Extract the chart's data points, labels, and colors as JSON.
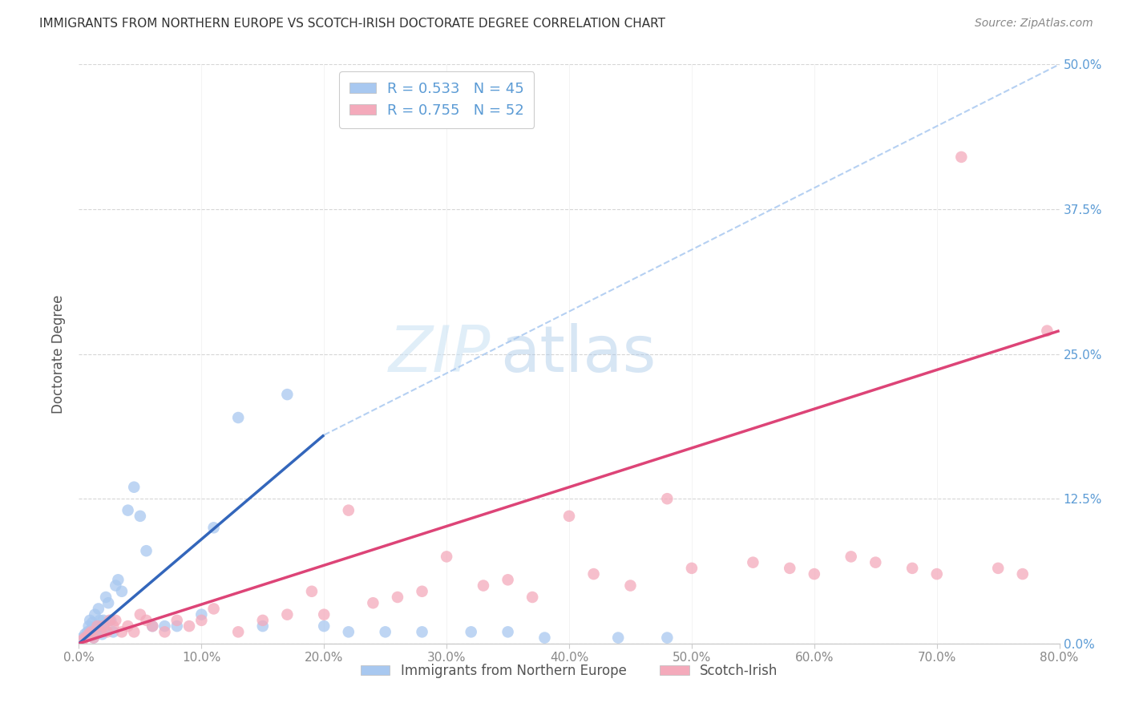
{
  "title": "IMMIGRANTS FROM NORTHERN EUROPE VS SCOTCH-IRISH DOCTORATE DEGREE CORRELATION CHART",
  "source": "Source: ZipAtlas.com",
  "xlabel_vals": [
    0,
    10,
    20,
    30,
    40,
    50,
    60,
    70,
    80
  ],
  "ylabel_vals": [
    0,
    12.5,
    25.0,
    37.5,
    50.0
  ],
  "ylabel_label": "Doctorate Degree",
  "xlim": [
    0,
    80
  ],
  "ylim": [
    0,
    50
  ],
  "legend_label_blue": "Immigrants from Northern Europe",
  "legend_label_pink": "Scotch-Irish",
  "blue_color": "#A8C8F0",
  "pink_color": "#F4AABB",
  "blue_line_color": "#3366BB",
  "pink_line_color": "#DD4477",
  "blue_r": "0.533",
  "blue_n": "45",
  "pink_r": "0.755",
  "pink_n": "52",
  "blue_scatter_x": [
    0.3,
    0.5,
    0.7,
    0.8,
    0.9,
    1.0,
    1.1,
    1.2,
    1.3,
    1.4,
    1.5,
    1.6,
    1.7,
    1.8,
    1.9,
    2.0,
    2.1,
    2.2,
    2.4,
    2.6,
    2.8,
    3.0,
    3.2,
    3.5,
    4.0,
    4.5,
    5.0,
    5.5,
    6.0,
    7.0,
    8.0,
    10.0,
    11.0,
    13.0,
    15.0,
    17.0,
    20.0,
    22.0,
    25.0,
    28.0,
    32.0,
    35.0,
    38.0,
    44.0,
    48.0
  ],
  "blue_scatter_y": [
    0.5,
    0.8,
    1.0,
    1.5,
    2.0,
    1.2,
    1.8,
    0.5,
    2.5,
    1.0,
    1.5,
    3.0,
    2.0,
    1.5,
    0.8,
    2.0,
    1.2,
    4.0,
    3.5,
    2.0,
    1.0,
    5.0,
    5.5,
    4.5,
    11.5,
    13.5,
    11.0,
    8.0,
    1.5,
    1.5,
    1.5,
    2.5,
    10.0,
    19.5,
    1.5,
    21.5,
    1.5,
    1.0,
    1.0,
    1.0,
    1.0,
    1.0,
    0.5,
    0.5,
    0.5
  ],
  "pink_scatter_x": [
    0.3,
    0.5,
    0.8,
    1.0,
    1.2,
    1.5,
    1.8,
    2.0,
    2.3,
    2.5,
    2.8,
    3.0,
    3.5,
    4.0,
    4.5,
    5.0,
    5.5,
    6.0,
    7.0,
    8.0,
    9.0,
    10.0,
    11.0,
    13.0,
    15.0,
    17.0,
    19.0,
    20.0,
    22.0,
    24.0,
    26.0,
    28.0,
    30.0,
    33.0,
    35.0,
    37.0,
    40.0,
    42.0,
    45.0,
    48.0,
    50.0,
    55.0,
    58.0,
    60.0,
    63.0,
    65.0,
    68.0,
    70.0,
    72.0,
    75.0,
    77.0,
    79.0
  ],
  "pink_scatter_y": [
    0.3,
    0.5,
    0.8,
    1.0,
    0.5,
    1.5,
    1.0,
    1.5,
    1.0,
    2.0,
    1.5,
    2.0,
    1.0,
    1.5,
    1.0,
    2.5,
    2.0,
    1.5,
    1.0,
    2.0,
    1.5,
    2.0,
    3.0,
    1.0,
    2.0,
    2.5,
    4.5,
    2.5,
    11.5,
    3.5,
    4.0,
    4.5,
    7.5,
    5.0,
    5.5,
    4.0,
    11.0,
    6.0,
    5.0,
    12.5,
    6.5,
    7.0,
    6.5,
    6.0,
    7.5,
    7.0,
    6.5,
    6.0,
    42.0,
    6.5,
    6.0,
    27.0
  ],
  "background_color": "#FFFFFF",
  "grid_color": "#CCCCCC",
  "blue_line_x0": 0.0,
  "blue_line_y0": 0.0,
  "blue_line_x1": 20.0,
  "blue_line_y1": 18.0,
  "blue_dash_x0": 20.0,
  "blue_dash_y0": 18.0,
  "blue_dash_x1": 80.0,
  "blue_dash_y1": 50.0,
  "pink_line_x0": 0.0,
  "pink_line_y0": 0.0,
  "pink_line_x1": 80.0,
  "pink_line_y1": 27.0
}
